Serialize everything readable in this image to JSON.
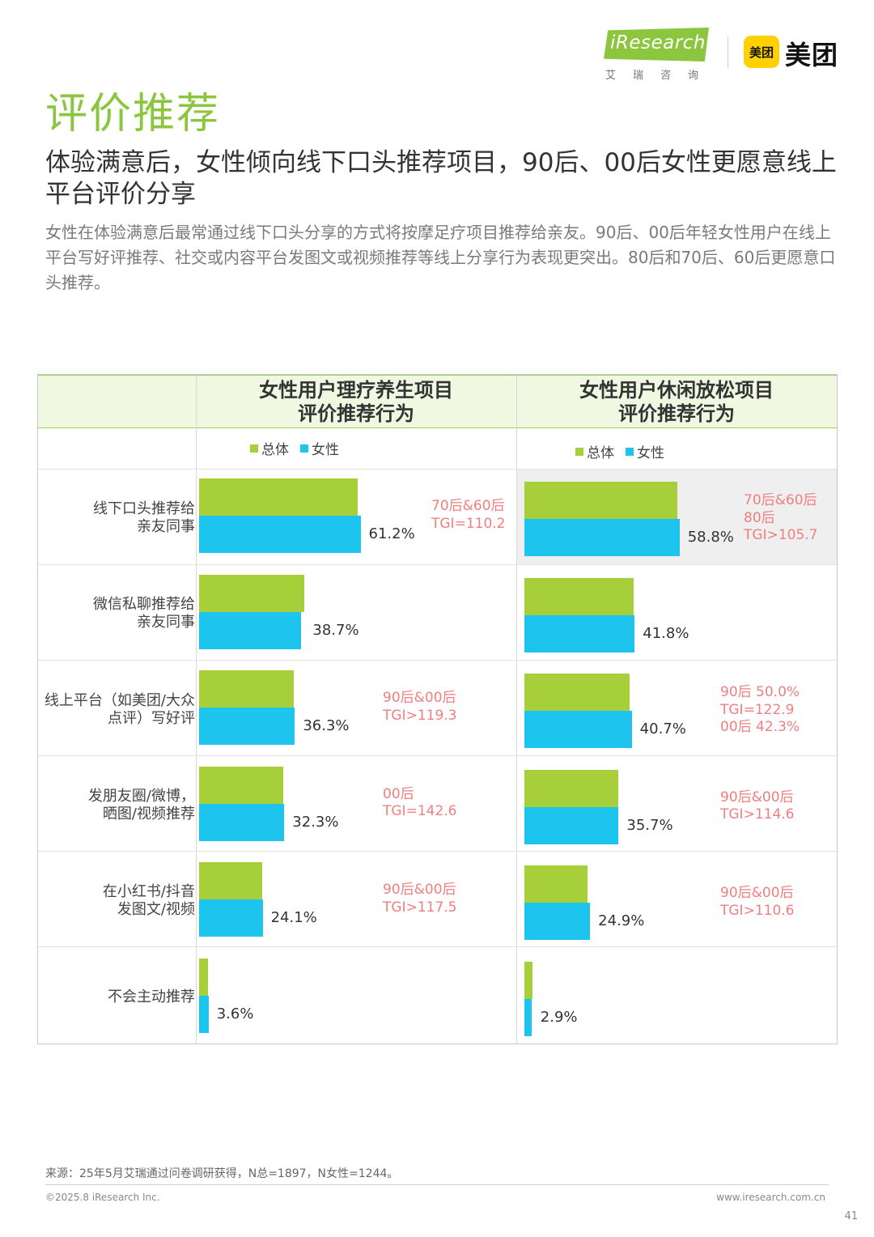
{
  "header": {
    "ir_logo": "iResearch",
    "ir_sub": "艾瑞咨询",
    "mt_box": "美团",
    "mt_text": "美团"
  },
  "page_title": "评价推荐",
  "headline": "体验满意后，女性倾向线下口头推荐项目，90后、00后女性更愿意线上平台评价分享",
  "description": "女性在体验满意后最常通过线下口头分享的方式将按摩足疗项目推荐给亲友。90后、00后年轻女性用户在线上平台写好评推荐、社交或内容平台发图文或视频推荐等线上分享行为表现更突出。80后和70后、60后更愿意口头推荐。",
  "colors": {
    "total": "#a6cf3a",
    "female": "#1cc4ee",
    "note": "#f07f7f",
    "title": "#8cc63f"
  },
  "chart_data": [
    {
      "type": "bar",
      "orientation": "horizontal",
      "title": "女性用户理疗养生项目\n评价推荐行为",
      "legend": [
        "总体",
        "女性"
      ],
      "legend_position": "top",
      "categories": [
        "线下口头推荐给\n亲友同事",
        "微信私聊推荐给\n亲友同事",
        "线上平台（如美团/大众\n点评）写好评",
        "发朋友圈/微博，\n晒图/视频推荐",
        "在小红书/抖音\n发图文/视频",
        "不会主动推荐"
      ],
      "series": [
        {
          "name": "总体",
          "values": [
            60.0,
            40.0,
            36.0,
            32.0,
            24.0,
            3.5
          ]
        },
        {
          "name": "女性",
          "values": [
            61.2,
            38.7,
            36.3,
            32.3,
            24.1,
            3.6
          ]
        }
      ],
      "value_labels": [
        "61.2%",
        "38.7%",
        "36.3%",
        "32.3%",
        "24.1%",
        "3.6%"
      ],
      "annotations": [
        "70后&60后\nTGI=110.2",
        "",
        "90后&00后\nTGI>119.3",
        "00后\nTGI=142.6",
        "90后&00后\nTGI>117.5",
        ""
      ],
      "highlighted_rows": [],
      "xlim": [
        0,
        65
      ]
    },
    {
      "type": "bar",
      "orientation": "horizontal",
      "title": "女性用户休闲放松项目\n评价推荐行为",
      "legend": [
        "总体",
        "女性"
      ],
      "legend_position": "top",
      "categories": [
        "线下口头推荐给\n亲友同事",
        "微信私聊推荐给\n亲友同事",
        "线上平台（如美团/大众\n点评）写好评",
        "发朋友圈/微博，\n晒图/视频推荐",
        "在小红书/抖音\n发图文/视频",
        "不会主动推荐"
      ],
      "series": [
        {
          "name": "总体",
          "values": [
            58.0,
            41.5,
            40.0,
            35.5,
            24.0,
            3.0
          ]
        },
        {
          "name": "女性",
          "values": [
            58.8,
            41.8,
            40.7,
            35.7,
            24.9,
            2.9
          ]
        }
      ],
      "value_labels": [
        "58.8%",
        "41.8%",
        "40.7%",
        "35.7%",
        "24.9%",
        "2.9%"
      ],
      "annotations": [
        "70后&60后\n80后\nTGI>105.7",
        "",
        "90后 50.0%\nTGI=122.9\n00后 42.3%",
        "90后&00后\nTGI>114.6",
        "90后&00后\nTGI>110.6",
        ""
      ],
      "highlighted_rows": [
        0
      ],
      "xlim": [
        0,
        65
      ]
    }
  ],
  "footer": {
    "source": "来源：25年5月艾瑞通过问卷调研获得，N总=1897，N女性=1244。",
    "copyright": "©2025.8 iResearch Inc.",
    "website": "www.iresearch.com.cn",
    "page": "41"
  }
}
